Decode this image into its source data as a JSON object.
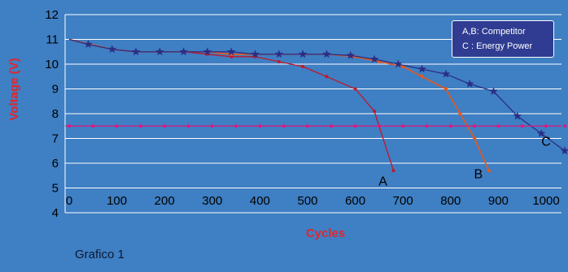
{
  "chart_data": {
    "type": "line",
    "xlabel": "Cycles",
    "ylabel": "Voltage (V)",
    "xlim": [
      0,
      1000
    ],
    "ylim": [
      4,
      12
    ],
    "xticks": [
      "0",
      "100",
      "200",
      "300",
      "400",
      "500",
      "600",
      "700",
      "800",
      "900",
      "1000"
    ],
    "yticks": [
      "4",
      "5",
      "6",
      "7",
      "8",
      "9",
      "10",
      "11",
      "12"
    ],
    "grid": "horizontal",
    "legend_text": [
      "A,B: Competitor",
      "C : Energy Power"
    ],
    "legend_position": "top-right",
    "footnote": "Grafico 1",
    "colors": {
      "background": "#3f7fc3",
      "A": "#c0182a",
      "B": "#e8571a",
      "C": "#2a2f85",
      "threshold": "#e2167f",
      "legend_box": "#2f3c91"
    },
    "series": [
      {
        "name": "A",
        "marker": "dot",
        "points": [
          [
            0,
            11.0
          ],
          [
            40,
            10.8
          ],
          [
            90,
            10.6
          ],
          [
            140,
            10.5
          ],
          [
            190,
            10.5
          ],
          [
            240,
            10.5
          ],
          [
            290,
            10.4
          ],
          [
            340,
            10.3
          ],
          [
            390,
            10.3
          ],
          [
            440,
            10.1
          ],
          [
            490,
            9.9
          ],
          [
            540,
            9.5
          ],
          [
            600,
            9.0
          ],
          [
            640,
            8.1
          ],
          [
            680,
            5.7
          ]
        ]
      },
      {
        "name": "B",
        "marker": "dot",
        "points": [
          [
            0,
            11.0
          ],
          [
            90,
            10.6
          ],
          [
            140,
            10.5
          ],
          [
            190,
            10.5
          ],
          [
            240,
            10.5
          ],
          [
            290,
            10.5
          ],
          [
            340,
            10.4
          ],
          [
            390,
            10.4
          ],
          [
            440,
            10.4
          ],
          [
            490,
            10.4
          ],
          [
            540,
            10.4
          ],
          [
            600,
            10.3
          ],
          [
            650,
            10.1
          ],
          [
            700,
            9.9
          ],
          [
            740,
            9.5
          ],
          [
            790,
            9.0
          ],
          [
            820,
            8.0
          ],
          [
            850,
            7.0
          ],
          [
            880,
            5.7
          ]
        ]
      },
      {
        "name": "C",
        "marker": "star",
        "points": [
          [
            0,
            11.0
          ],
          [
            40,
            10.8
          ],
          [
            90,
            10.6
          ],
          [
            140,
            10.5
          ],
          [
            190,
            10.5
          ],
          [
            240,
            10.5
          ],
          [
            290,
            10.5
          ],
          [
            340,
            10.5
          ],
          [
            390,
            10.4
          ],
          [
            440,
            10.4
          ],
          [
            490,
            10.4
          ],
          [
            540,
            10.4
          ],
          [
            590,
            10.35
          ],
          [
            640,
            10.2
          ],
          [
            690,
            10.0
          ],
          [
            740,
            9.8
          ],
          [
            790,
            9.6
          ],
          [
            840,
            9.2
          ],
          [
            890,
            8.9
          ],
          [
            940,
            7.9
          ],
          [
            990,
            7.2
          ],
          [
            1040,
            6.5
          ]
        ]
      },
      {
        "name": "threshold",
        "marker": "dot",
        "constant": 7.5,
        "x_points": [
          0,
          50,
          100,
          150,
          200,
          250,
          300,
          350,
          400,
          450,
          500,
          550,
          600,
          650,
          700,
          750,
          800,
          850,
          900,
          950,
          1000,
          1050
        ]
      }
    ],
    "series_labels": [
      {
        "text": "A",
        "x": 658,
        "y": 5.1
      },
      {
        "text": "B",
        "x": 858,
        "y": 5.4
      },
      {
        "text": "C",
        "x": 1000,
        "y": 6.7
      }
    ]
  }
}
